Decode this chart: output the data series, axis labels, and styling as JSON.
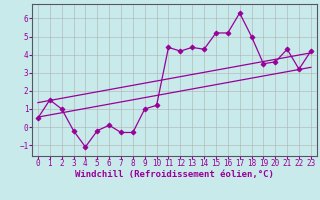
{
  "xlabel": "Windchill (Refroidissement éolien,°C)",
  "bg_color": "#c8eaea",
  "line_color": "#990099",
  "grid_color": "#b0b0b0",
  "xlim": [
    -0.5,
    23.5
  ],
  "ylim": [
    -1.6,
    6.8
  ],
  "xticks": [
    0,
    1,
    2,
    3,
    4,
    5,
    6,
    7,
    8,
    9,
    10,
    11,
    12,
    13,
    14,
    15,
    16,
    17,
    18,
    19,
    20,
    21,
    22,
    23
  ],
  "yticks": [
    -1,
    0,
    1,
    2,
    3,
    4,
    5,
    6
  ],
  "data_x": [
    0,
    1,
    2,
    3,
    4,
    5,
    6,
    7,
    8,
    9,
    10,
    11,
    12,
    13,
    14,
    15,
    16,
    17,
    18,
    19,
    20,
    21,
    22,
    23
  ],
  "data_y": [
    0.5,
    1.5,
    1.0,
    -0.2,
    -1.1,
    -0.2,
    0.1,
    -0.3,
    -0.3,
    1.0,
    1.2,
    4.4,
    4.2,
    4.4,
    4.3,
    5.2,
    5.2,
    6.3,
    5.0,
    3.5,
    3.6,
    4.3,
    3.2,
    4.2
  ],
  "line1_x": [
    0,
    23
  ],
  "line1_y": [
    0.55,
    3.3
  ],
  "line2_x": [
    0,
    23
  ],
  "line2_y": [
    1.35,
    4.1
  ],
  "tick_fontsize": 5.5,
  "label_fontsize": 6.5
}
